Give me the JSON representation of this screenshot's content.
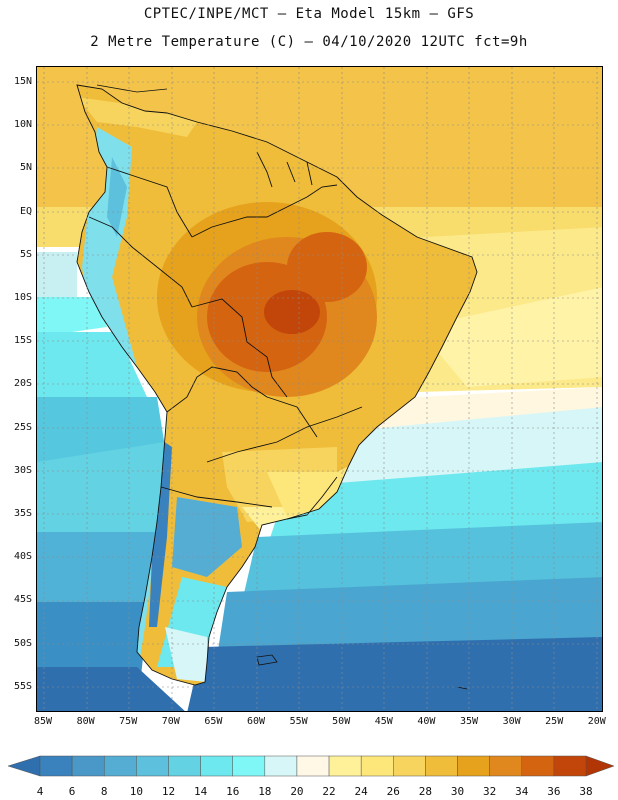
{
  "header": {
    "line1": "CPTEC/INPE/MCT —  Eta Model 15km — GFS",
    "line2": "2 Metre Temperature (C) — 04/10/2020 12UTC fct=9h"
  },
  "map": {
    "lat_labels": [
      "15N",
      "10N",
      "5N",
      "EQ",
      "5S",
      "10S",
      "15S",
      "20S",
      "25S",
      "30S",
      "35S",
      "40S",
      "45S",
      "50S",
      "55S"
    ],
    "lon_labels": [
      "85W",
      "80W",
      "75W",
      "70W",
      "65W",
      "60W",
      "55W",
      "50W",
      "45W",
      "40W",
      "35W",
      "30W",
      "25W",
      "20W"
    ]
  },
  "colorbar": {
    "labels": [
      "4",
      "6",
      "8",
      "10",
      "12",
      "14",
      "16",
      "18",
      "20",
      "22",
      "24",
      "26",
      "28",
      "30",
      "32",
      "34",
      "36",
      "38"
    ],
    "colors": [
      "#2f6fae",
      "#3a82bd",
      "#4a98c8",
      "#55add4",
      "#5dc0dc",
      "#63d2e2",
      "#6ce8ee",
      "#7ff7f7",
      "#d7f6f7",
      "#fff8e6",
      "#fff19a",
      "#fde67a",
      "#f7d45e",
      "#efbd3a",
      "#e6a21c",
      "#e0871e",
      "#d56411",
      "#c24609",
      "#b13505"
    ]
  }
}
